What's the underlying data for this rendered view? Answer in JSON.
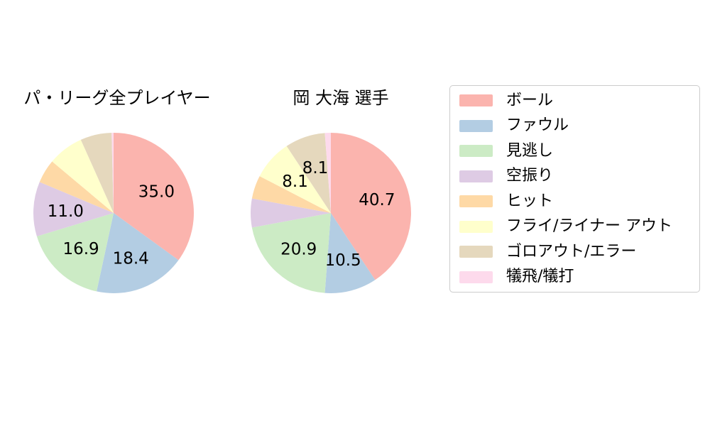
{
  "figure": {
    "background": "#ffffff",
    "text_color": "#000000"
  },
  "chart_data": [
    {
      "type": "pie",
      "title": "パ・リーグ全プレイヤー",
      "categories": [
        "ボール",
        "ファウル",
        "見逃し",
        "空振り",
        "ヒット",
        "フライ/ライナー アウト",
        "ゴロアウト/エラー",
        "犠飛/犠打"
      ],
      "values": [
        35.0,
        18.4,
        16.9,
        11.0,
        4.8,
        7.2,
        6.3,
        0.4
      ],
      "value_labels_shown": [
        "35.0",
        "18.4",
        "16.9",
        "11.0"
      ],
      "colors": [
        "#fbb4ae",
        "#b3cde3",
        "#ccebc5",
        "#decbe4",
        "#fed9a6",
        "#ffffcc",
        "#e5d8bd",
        "#fddaec"
      ],
      "start_angle": "top",
      "direction": "clockwise",
      "label_min_pct": 8,
      "label_radius_ratio": 0.6,
      "unlabeled_values_estimated": true
    },
    {
      "type": "pie",
      "title": "岡 大海 選手",
      "categories": [
        "ボール",
        "ファウル",
        "見逃し",
        "空振り",
        "ヒット",
        "フライ/ライナー アウト",
        "ゴロアウト/エラー",
        "犠飛/犠打"
      ],
      "values": [
        40.7,
        10.5,
        20.9,
        5.8,
        4.7,
        8.1,
        8.1,
        1.2
      ],
      "value_labels_shown": [
        "40.7",
        "10.5",
        "20.9",
        "8.1",
        "8.1"
      ],
      "colors": [
        "#fbb4ae",
        "#b3cde3",
        "#ccebc5",
        "#decbe4",
        "#fed9a6",
        "#ffffcc",
        "#e5d8bd",
        "#fddaec"
      ],
      "start_angle": "top",
      "direction": "clockwise",
      "label_min_pct": 8,
      "label_radius_ratio": 0.6,
      "unlabeled_values_estimated": true
    }
  ],
  "legend": {
    "position": "right",
    "items": [
      {
        "label": "ボール",
        "color": "#fbb4ae"
      },
      {
        "label": "ファウル",
        "color": "#b3cde3"
      },
      {
        "label": "見逃し",
        "color": "#ccebc5"
      },
      {
        "label": "空振り",
        "color": "#decbe4"
      },
      {
        "label": "ヒット",
        "color": "#fed9a6"
      },
      {
        "label": "フライ/ライナー アウト",
        "color": "#ffffcc"
      },
      {
        "label": "ゴロアウト/エラー",
        "color": "#e5d8bd"
      },
      {
        "label": "犠飛/犠打",
        "color": "#fddaec"
      }
    ]
  }
}
